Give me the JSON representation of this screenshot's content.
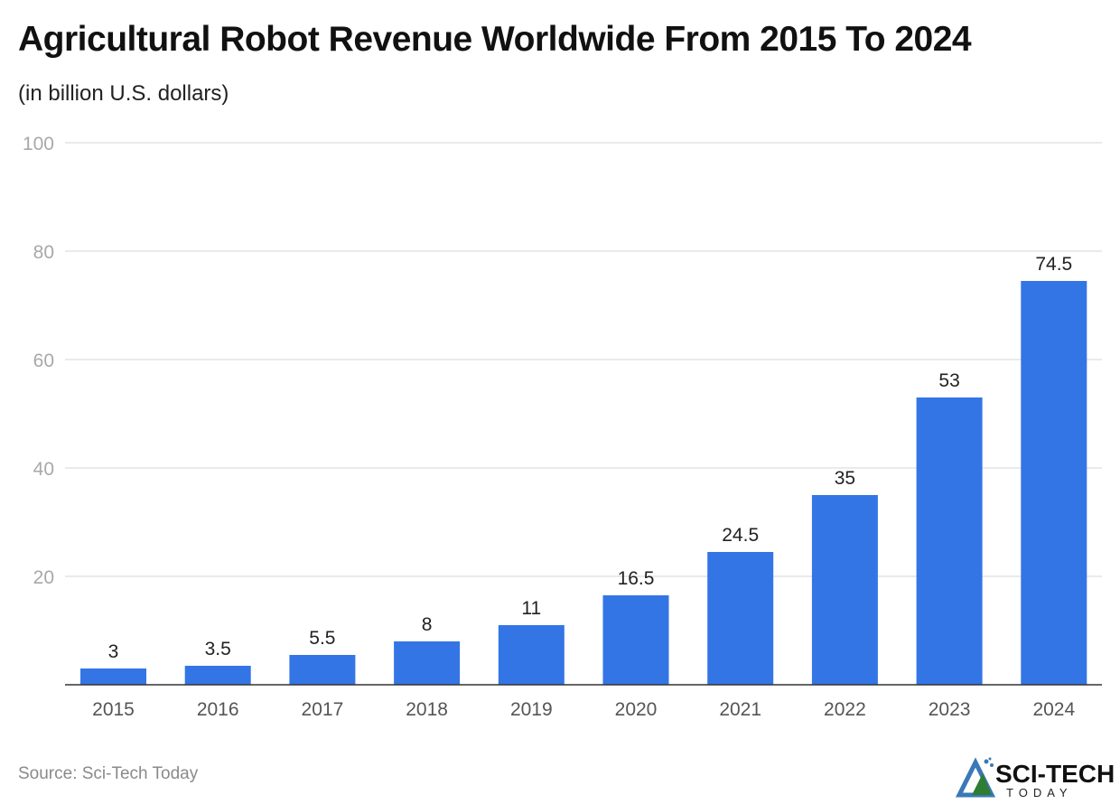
{
  "chart_data": {
    "type": "bar",
    "title": "Agricultural Robot Revenue Worldwide From 2015 To 2024",
    "subtitle": "(in billion U.S. dollars)",
    "categories": [
      "2015",
      "2016",
      "2017",
      "2018",
      "2019",
      "2020",
      "2021",
      "2022",
      "2023",
      "2024"
    ],
    "values": [
      3,
      3.5,
      5.5,
      8,
      11,
      16.5,
      24.5,
      35,
      53,
      74.5
    ],
    "ylim": [
      0,
      100
    ],
    "yticks": [
      20,
      40,
      60,
      80,
      100
    ],
    "grid": true,
    "bar_color": "#3475e6",
    "xlabel": "",
    "ylabel": ""
  },
  "source": "Source: Sci-Tech Today",
  "logo": {
    "text_main": "SCI-TECH",
    "text_sub": "TODAY"
  }
}
